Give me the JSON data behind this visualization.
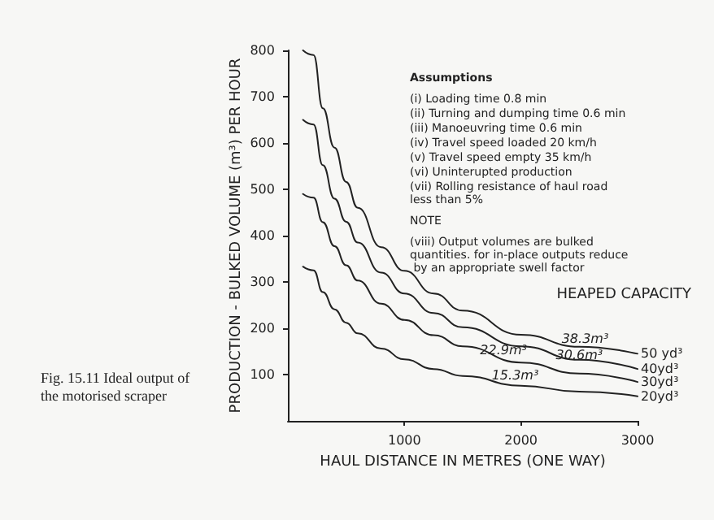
{
  "chart_data": {
    "type": "line",
    "title": "Fig. 15.11 Ideal output of the motorised scraper",
    "xlabel": "HAUL DISTANCE IN METRES (ONE WAY)",
    "ylabel": "PRODUCTION - BULKED VOLUME (m³) PER HOUR",
    "x": [
      130,
      220,
      300,
      400,
      500,
      600,
      800,
      1000,
      1250,
      1500,
      2000,
      2500,
      3000
    ],
    "series": [
      {
        "name": "50 yd³",
        "color": "#222222",
        "values": [
          800,
          790,
          675,
          590,
          516,
          460,
          375,
          324,
          275,
          238,
          186,
          160,
          145
        ]
      },
      {
        "name": "40yd³",
        "color": "#222222",
        "values": [
          650,
          640,
          552,
          480,
          430,
          385,
          320,
          275,
          233,
          202,
          161,
          132,
          112
        ]
      },
      {
        "name": "30yd³",
        "color": "#222222",
        "values": [
          490,
          482,
          429,
          377,
          336,
          303,
          253,
          218,
          185,
          161,
          126,
          102,
          84
        ]
      },
      {
        "name": "20yd³",
        "color": "#222222",
        "values": [
          333,
          325,
          278,
          241,
          212,
          189,
          156,
          133,
          112,
          97,
          76,
          63,
          53
        ]
      }
    ],
    "xlim": [
      0,
      3000
    ],
    "xticks": [
      1000,
      2000,
      3000
    ],
    "ylim": [
      0,
      800
    ],
    "yticks": [
      100,
      200,
      300,
      400,
      500,
      600,
      700,
      800
    ],
    "annotations": [
      "Assumptions",
      "(i) Loading time 0.8 min",
      "(ii) Turning and dumping time 0.6 min",
      "(iii) Manoeuvring time 0.6 min",
      "(iv) Travel speed loaded 20 km/h",
      "(v) Travel speed empty 35 km/h",
      "(vi) Uninterupted production",
      "(vii) Rolling resistance of haul road less than 5%",
      "NOTE",
      "(viii) Output volumes are bulked quantities. for in-place outputs reduce by an appropriate swell factor",
      "HEAPED CAPACITY",
      {
        "text": "38.3m³",
        "x": 2550,
        "y": 160
      },
      {
        "text": "30.6m³",
        "x": 2500,
        "y": 125
      },
      {
        "text": "22.9m³",
        "x": 1850,
        "y": 135
      },
      {
        "text": "15.3m³",
        "x": 1950,
        "y": 80
      }
    ],
    "legend": false,
    "grid": false,
    "marker": "none",
    "line_style": "solid"
  }
}
